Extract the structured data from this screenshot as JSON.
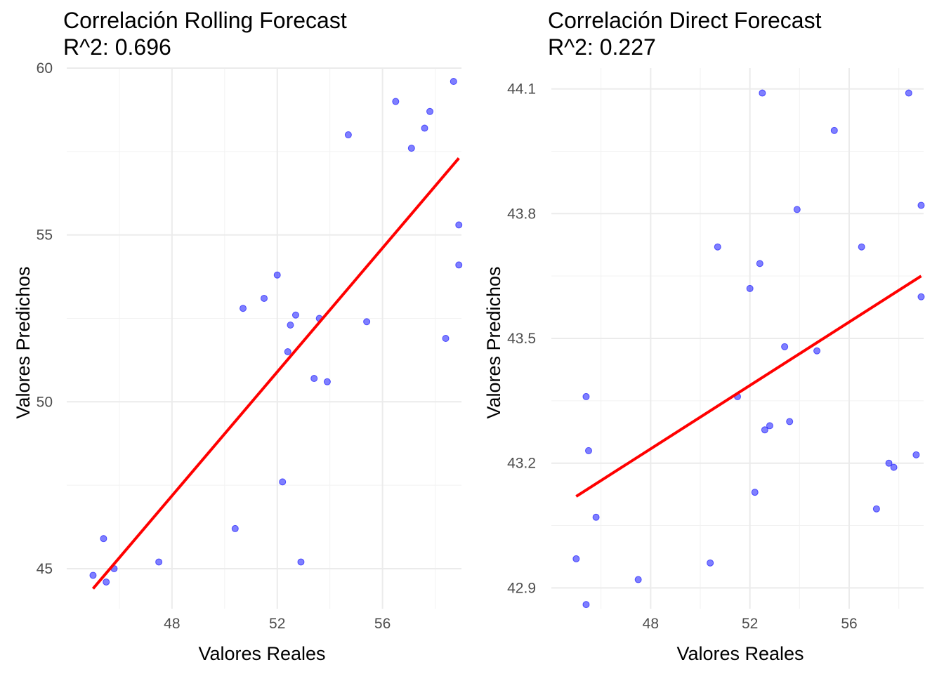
{
  "chart_data": [
    {
      "type": "scatter",
      "title": "Correlación Rolling Forecast",
      "subtitle": "R^2: 0.696",
      "xlabel": "Valores Reales",
      "ylabel": "Valores Predichos",
      "xlim": [
        44.0,
        59.0
      ],
      "ylim": [
        43.8,
        60.0
      ],
      "xticks": [
        48,
        52,
        56
      ],
      "yticks": [
        45,
        50,
        55,
        60
      ],
      "grid": true,
      "point_color": "#0000ff",
      "fit_color": "#ff0000",
      "series": [
        {
          "points": [
            [
              45.0,
              44.8
            ],
            [
              45.4,
              45.9
            ],
            [
              45.5,
              44.6
            ],
            [
              45.8,
              45.0
            ],
            [
              47.5,
              45.2
            ],
            [
              50.4,
              46.2
            ],
            [
              50.7,
              52.8
            ],
            [
              51.5,
              53.1
            ],
            [
              52.0,
              53.8
            ],
            [
              52.2,
              47.6
            ],
            [
              52.4,
              51.5
            ],
            [
              52.5,
              52.3
            ],
            [
              52.7,
              52.6
            ],
            [
              52.9,
              45.2
            ],
            [
              53.4,
              50.7
            ],
            [
              53.6,
              52.5
            ],
            [
              53.9,
              50.6
            ],
            [
              54.7,
              58.0
            ],
            [
              55.4,
              52.4
            ],
            [
              56.5,
              59.0
            ],
            [
              57.1,
              57.6
            ],
            [
              57.6,
              58.2
            ],
            [
              57.8,
              58.7
            ],
            [
              58.4,
              51.9
            ],
            [
              58.7,
              59.6
            ],
            [
              58.9,
              55.3
            ],
            [
              58.9,
              54.1
            ]
          ]
        }
      ],
      "fit_line": [
        [
          45.0,
          44.4
        ],
        [
          58.9,
          57.3
        ]
      ]
    },
    {
      "type": "scatter",
      "title": "Correlación Direct Forecast",
      "subtitle": "R^2: 0.227",
      "xlabel": "Valores Reales",
      "ylabel": "Valores Predichos",
      "xlim": [
        44.0,
        59.0
      ],
      "ylim": [
        42.85,
        44.15
      ],
      "xticks": [
        48,
        52,
        56
      ],
      "yticks": [
        42.9,
        43.2,
        43.5,
        43.8,
        44.1
      ],
      "grid": true,
      "point_color": "#0000ff",
      "fit_color": "#ff0000",
      "series": [
        {
          "points": [
            [
              45.0,
              42.97
            ],
            [
              45.4,
              42.86
            ],
            [
              45.4,
              43.36
            ],
            [
              45.5,
              43.23
            ],
            [
              45.8,
              43.07
            ],
            [
              47.5,
              42.92
            ],
            [
              50.4,
              42.96
            ],
            [
              50.7,
              43.72
            ],
            [
              51.5,
              43.36
            ],
            [
              52.0,
              43.62
            ],
            [
              52.2,
              43.13
            ],
            [
              52.4,
              43.68
            ],
            [
              52.5,
              44.09
            ],
            [
              52.6,
              43.28
            ],
            [
              52.8,
              43.29
            ],
            [
              53.4,
              43.48
            ],
            [
              53.6,
              43.3
            ],
            [
              53.9,
              43.81
            ],
            [
              54.7,
              43.47
            ],
            [
              55.4,
              44.0
            ],
            [
              56.5,
              43.72
            ],
            [
              57.1,
              43.09
            ],
            [
              57.6,
              43.2
            ],
            [
              57.8,
              43.19
            ],
            [
              58.4,
              44.09
            ],
            [
              58.7,
              43.22
            ],
            [
              58.9,
              43.82
            ],
            [
              58.9,
              43.6
            ]
          ]
        }
      ],
      "fit_line": [
        [
          45.0,
          43.12
        ],
        [
          58.9,
          43.65
        ]
      ]
    }
  ]
}
